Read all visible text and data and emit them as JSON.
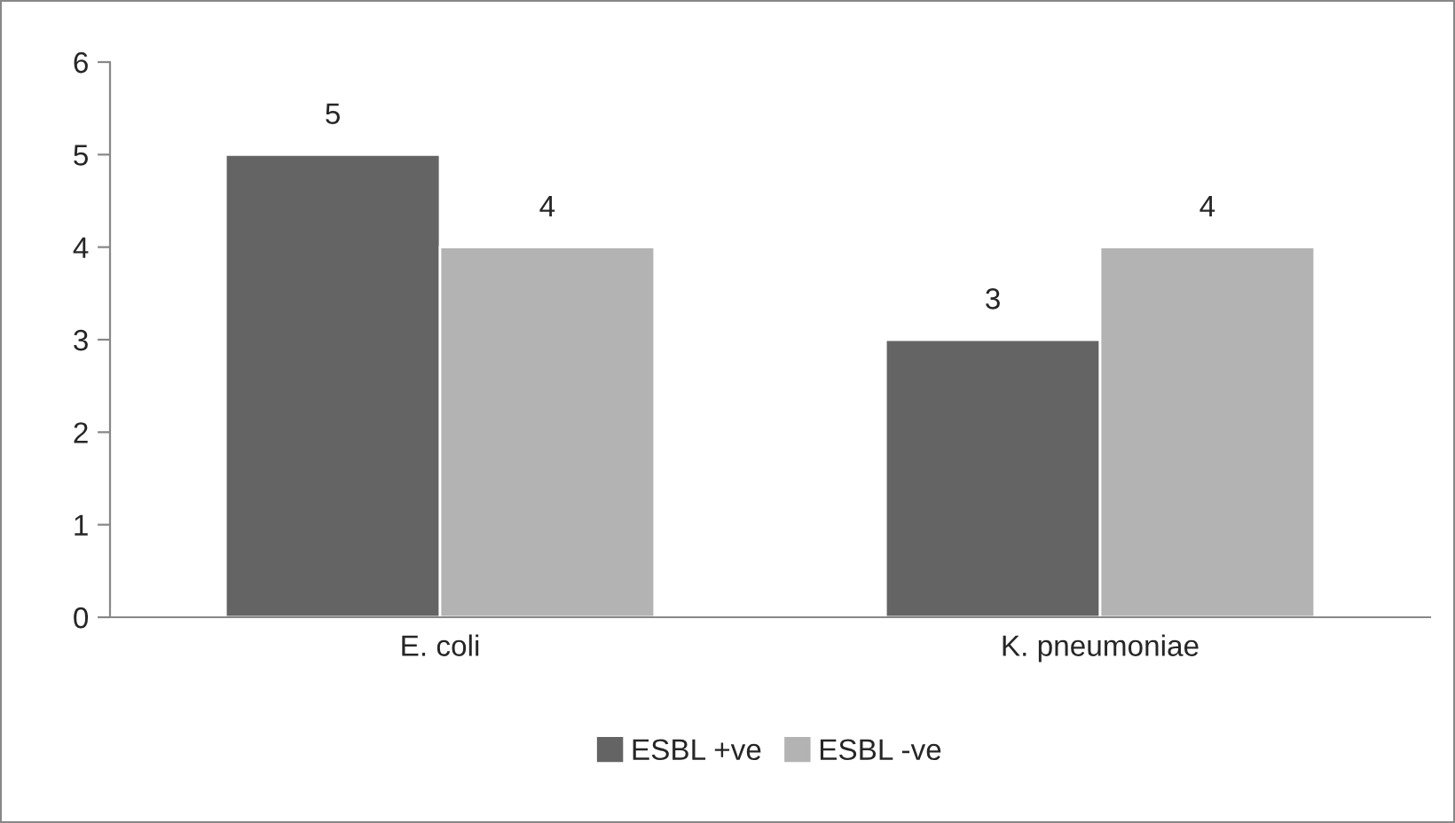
{
  "chart_data": {
    "type": "bar",
    "categories": [
      "E. coli",
      "K. pneumoniae"
    ],
    "series": [
      {
        "name": "ESBL +ve",
        "color": "#646464",
        "values": [
          5,
          3
        ]
      },
      {
        "name": "ESBL -ve",
        "color": "#b3b3b3",
        "values": [
          4,
          4
        ]
      }
    ],
    "ylim": [
      0,
      6
    ],
    "yticks": [
      0,
      1,
      2,
      3,
      4,
      5,
      6
    ],
    "grid": false,
    "legend": "bottom",
    "data_labels": true
  }
}
